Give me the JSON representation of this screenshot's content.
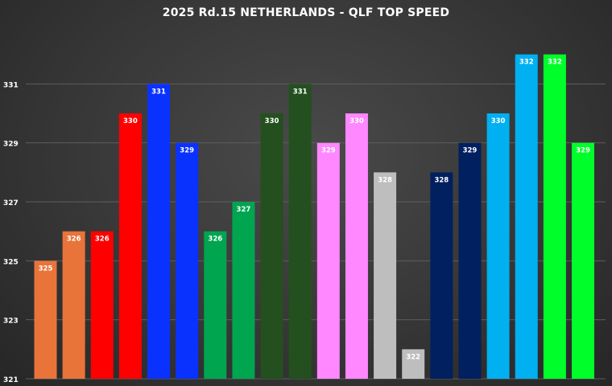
{
  "chart_data": {
    "type": "bar",
    "title": "2025 Rd.15 NETHERLANDS - QLF TOP SPEED",
    "ylim": [
      321,
      333
    ],
    "yticks": [
      321,
      323,
      325,
      327,
      329,
      331
    ],
    "grid": true,
    "bars": [
      {
        "value": 325,
        "label": "325",
        "color": "#E8743A",
        "label_color": "#ffffff"
      },
      {
        "value": 326,
        "label": "326",
        "color": "#E8743A",
        "label_color": "#ffffff"
      },
      {
        "value": 326,
        "label": "326",
        "color": "#FF0000",
        "label_color": "#ffffff"
      },
      {
        "value": 330,
        "label": "330",
        "color": "#FF0000",
        "label_color": "#ffffff"
      },
      {
        "value": 331,
        "label": "331",
        "color": "#0A32FF",
        "label_color": "#ffffff"
      },
      {
        "value": 329,
        "label": "329",
        "color": "#0A32FF",
        "label_color": "#ffffff"
      },
      {
        "value": 326,
        "label": "326",
        "color": "#00A550",
        "label_color": "#ffffff"
      },
      {
        "value": 327,
        "label": "327",
        "color": "#00A550",
        "label_color": "#ffffff"
      },
      {
        "value": 330,
        "label": "330",
        "color": "#23501E",
        "label_color": "#ffffff"
      },
      {
        "value": 331,
        "label": "331",
        "color": "#23501E",
        "label_color": "#ffffff"
      },
      {
        "value": 329,
        "label": "329",
        "color": "#FF87FF",
        "label_color": "#ffffff"
      },
      {
        "value": 330,
        "label": "330",
        "color": "#FF87FF",
        "label_color": "#ffffff"
      },
      {
        "value": 328,
        "label": "328",
        "color": "#BEBEBE",
        "label_color": "#ffffff"
      },
      {
        "value": 322,
        "label": "322",
        "color": "#BEBEBE",
        "label_color": "#ffffff"
      },
      {
        "value": 328,
        "label": "328",
        "color": "#002060",
        "label_color": "#ffffff"
      },
      {
        "value": 329,
        "label": "329",
        "color": "#002060",
        "label_color": "#ffffff"
      },
      {
        "value": 330,
        "label": "330",
        "color": "#00B0F0",
        "label_color": "#ffffff"
      },
      {
        "value": 332,
        "label": "332",
        "color": "#00B0F0",
        "label_color": "#ffffff"
      },
      {
        "value": 332,
        "label": "332",
        "color": "#00FF2A",
        "label_color": "#ffffff"
      },
      {
        "value": 329,
        "label": "329",
        "color": "#00FF2A",
        "label_color": "#ffffff"
      }
    ]
  },
  "colors": {
    "gridline": "#5e5e5e",
    "tick_label": "#ffffff",
    "title": "#ffffff"
  }
}
